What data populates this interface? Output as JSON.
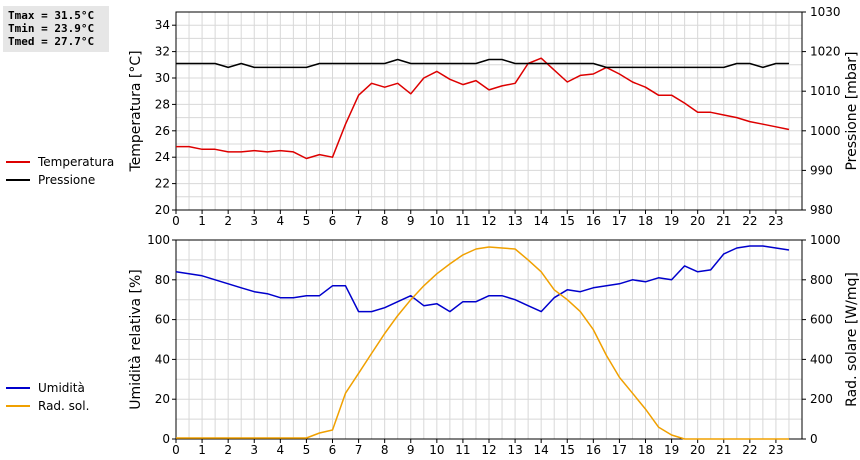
{
  "stats": {
    "tmax": "Tmax = 31.5°C",
    "tmin": "Tmin = 23.9°C",
    "tmed": "Tmed = 27.7°C"
  },
  "colors": {
    "temperature": "#dd0000",
    "pressure": "#000000",
    "humidity": "#0000cc",
    "radiation": "#f0a000",
    "grid": "#d8d8d8"
  },
  "legend_top": [
    {
      "label": "Temperatura",
      "color": "#dd0000"
    },
    {
      "label": "Pressione",
      "color": "#000000"
    }
  ],
  "legend_bottom": [
    {
      "label": "Umidità",
      "color": "#0000cc"
    },
    {
      "label": "Rad. sol.",
      "color": "#f0a000"
    }
  ],
  "chart_data": [
    {
      "type": "line",
      "xlabel": "",
      "xlim": [
        0,
        24
      ],
      "xticks": [
        "0",
        "1",
        "2",
        "3",
        "4",
        "5",
        "6",
        "7",
        "8",
        "9",
        "10",
        "11",
        "12",
        "13",
        "14",
        "15",
        "16",
        "17",
        "18",
        "19",
        "20",
        "21",
        "22",
        "23"
      ],
      "ylabel_left": "Temperatura [°C]",
      "ylim_left": [
        20,
        35
      ],
      "yticks_left": [
        20,
        22,
        24,
        26,
        28,
        30,
        32,
        34
      ],
      "ylabel_right": "Pressione [mbar]",
      "ylim_right": [
        980,
        1030
      ],
      "yticks_right": [
        980,
        990,
        1000,
        1010,
        1020,
        1030
      ],
      "grid": true,
      "series": [
        {
          "name": "Temperatura",
          "axis": "left",
          "x": [
            0,
            0.5,
            1,
            1.5,
            2,
            2.5,
            3,
            3.5,
            4,
            4.5,
            5,
            5.5,
            6,
            6.5,
            7,
            7.5,
            8,
            8.5,
            9,
            9.5,
            10,
            10.5,
            11,
            11.5,
            12,
            12.5,
            13,
            13.5,
            14,
            14.5,
            15,
            15.5,
            16,
            16.5,
            17,
            17.5,
            18,
            18.5,
            19,
            19.5,
            20,
            20.5,
            21,
            21.5,
            22,
            22.5,
            23,
            23.5
          ],
          "y": [
            24.8,
            24.8,
            24.6,
            24.6,
            24.4,
            24.4,
            24.5,
            24.4,
            24.5,
            24.4,
            23.9,
            24.2,
            24.0,
            26.5,
            28.7,
            29.6,
            29.3,
            29.6,
            28.8,
            30.0,
            30.5,
            29.9,
            29.5,
            29.8,
            29.1,
            29.4,
            29.6,
            31.1,
            31.5,
            30.6,
            29.7,
            30.2,
            30.3,
            30.8,
            30.3,
            29.7,
            29.3,
            28.7,
            28.7,
            28.1,
            27.4,
            27.4,
            27.2,
            27.0,
            26.7,
            26.5,
            26.3,
            26.1
          ]
        },
        {
          "name": "Pressione",
          "axis": "right",
          "x": [
            0,
            0.5,
            1,
            1.5,
            2,
            2.5,
            3,
            3.5,
            4,
            4.5,
            5,
            5.5,
            6,
            6.5,
            7,
            7.5,
            8,
            8.5,
            9,
            9.5,
            10,
            10.5,
            11,
            11.5,
            12,
            12.5,
            13,
            13.5,
            14,
            14.5,
            15,
            15.5,
            16,
            16.5,
            17,
            17.5,
            18,
            18.5,
            19,
            19.5,
            20,
            20.5,
            21,
            21.5,
            22,
            22.5,
            23,
            23.5
          ],
          "y": [
            1017,
            1017,
            1017,
            1017,
            1016,
            1017,
            1016,
            1016,
            1016,
            1016,
            1016,
            1017,
            1017,
            1017,
            1017,
            1017,
            1017,
            1018,
            1017,
            1017,
            1017,
            1017,
            1017,
            1017,
            1018,
            1018,
            1017,
            1017,
            1017,
            1017,
            1017,
            1017,
            1017,
            1016,
            1016,
            1016,
            1016,
            1016,
            1016,
            1016,
            1016,
            1016,
            1016,
            1017,
            1017,
            1016,
            1017,
            1017
          ]
        }
      ]
    },
    {
      "type": "line",
      "xlabel": "",
      "xlim": [
        0,
        24
      ],
      "xticks": [
        "0",
        "1",
        "2",
        "3",
        "4",
        "5",
        "6",
        "7",
        "8",
        "9",
        "10",
        "11",
        "12",
        "13",
        "14",
        "15",
        "16",
        "17",
        "18",
        "19",
        "20",
        "21",
        "22",
        "23"
      ],
      "ylabel_left": "Umidità relativa [%]",
      "ylim_left": [
        0,
        100
      ],
      "yticks_left": [
        0,
        20,
        40,
        60,
        80,
        100
      ],
      "ylabel_right": "Rad. solare [W/mq]",
      "ylim_right": [
        0,
        1000
      ],
      "yticks_right": [
        0,
        200,
        400,
        600,
        800,
        1000
      ],
      "grid": true,
      "series": [
        {
          "name": "Umidità",
          "axis": "left",
          "x": [
            0,
            0.5,
            1,
            1.5,
            2,
            2.5,
            3,
            3.5,
            4,
            4.5,
            5,
            5.5,
            6,
            6.5,
            7,
            7.5,
            8,
            8.5,
            9,
            9.5,
            10,
            10.5,
            11,
            11.5,
            12,
            12.5,
            13,
            13.5,
            14,
            14.5,
            15,
            15.5,
            16,
            16.5,
            17,
            17.5,
            18,
            18.5,
            19,
            19.5,
            20,
            20.5,
            21,
            21.5,
            22,
            22.5,
            23,
            23.5
          ],
          "y": [
            84,
            83,
            82,
            80,
            78,
            76,
            74,
            73,
            71,
            71,
            72,
            72,
            77,
            77,
            64,
            64,
            66,
            69,
            72,
            67,
            68,
            64,
            69,
            69,
            72,
            72,
            70,
            67,
            64,
            71,
            75,
            74,
            76,
            77,
            78,
            80,
            79,
            81,
            80,
            87,
            84,
            85,
            93,
            96,
            97,
            97,
            96,
            95
          ]
        },
        {
          "name": "Rad. sol.",
          "axis": "right",
          "x": [
            0,
            0.5,
            1,
            1.5,
            2,
            2.5,
            3,
            3.5,
            4,
            4.5,
            5,
            5.5,
            6,
            6.5,
            7,
            7.5,
            8,
            8.5,
            9,
            9.5,
            10,
            10.5,
            11,
            11.5,
            12,
            12.5,
            13,
            13.5,
            14,
            14.5,
            15,
            15.5,
            16,
            16.5,
            17,
            17.5,
            18,
            18.5,
            19,
            19.5,
            20,
            20.5,
            21,
            21.5,
            22,
            22.5,
            23,
            23.5
          ],
          "y": [
            5,
            5,
            5,
            5,
            5,
            5,
            5,
            5,
            5,
            5,
            5,
            30,
            45,
            230,
            330,
            430,
            530,
            620,
            700,
            770,
            830,
            880,
            925,
            955,
            965,
            960,
            955,
            900,
            840,
            750,
            700,
            640,
            550,
            420,
            310,
            230,
            150,
            60,
            20,
            0,
            0,
            0,
            0,
            0,
            0,
            0,
            0,
            0
          ]
        }
      ]
    }
  ]
}
